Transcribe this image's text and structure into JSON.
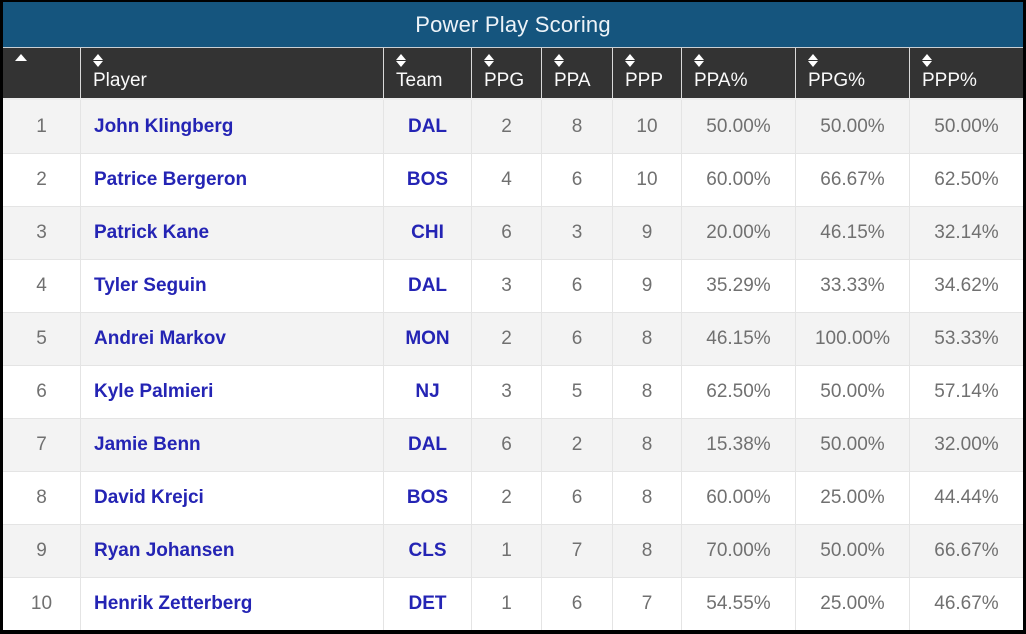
{
  "title": "Power Play Scoring",
  "colors": {
    "title_bar_bg": "#15557E",
    "header_bg": "#333333",
    "link_blue": "#2424B4",
    "muted_text": "#707070",
    "row_stripe": "#F3F3F3",
    "outer_border": "#000000"
  },
  "table": {
    "columns": [
      {
        "key": "rank",
        "label": "",
        "sort": "asc"
      },
      {
        "key": "player",
        "label": "Player",
        "sort": "none"
      },
      {
        "key": "team",
        "label": "Team",
        "sort": "none"
      },
      {
        "key": "ppg",
        "label": "PPG",
        "sort": "none"
      },
      {
        "key": "ppa",
        "label": "PPA",
        "sort": "none"
      },
      {
        "key": "ppp",
        "label": "PPP",
        "sort": "none"
      },
      {
        "key": "ppa_pct",
        "label": "PPA%",
        "sort": "none"
      },
      {
        "key": "ppg_pct",
        "label": "PPG%",
        "sort": "none"
      },
      {
        "key": "ppp_pct",
        "label": "PPP%",
        "sort": "none"
      }
    ],
    "rows": [
      {
        "rank": "1",
        "player": "John Klingberg",
        "team": "DAL",
        "ppg": "2",
        "ppa": "8",
        "ppp": "10",
        "ppa_pct": "50.00%",
        "ppg_pct": "50.00%",
        "ppp_pct": "50.00%"
      },
      {
        "rank": "2",
        "player": "Patrice Bergeron",
        "team": "BOS",
        "ppg": "4",
        "ppa": "6",
        "ppp": "10",
        "ppa_pct": "60.00%",
        "ppg_pct": "66.67%",
        "ppp_pct": "62.50%"
      },
      {
        "rank": "3",
        "player": "Patrick Kane",
        "team": "CHI",
        "ppg": "6",
        "ppa": "3",
        "ppp": "9",
        "ppa_pct": "20.00%",
        "ppg_pct": "46.15%",
        "ppp_pct": "32.14%"
      },
      {
        "rank": "4",
        "player": "Tyler Seguin",
        "team": "DAL",
        "ppg": "3",
        "ppa": "6",
        "ppp": "9",
        "ppa_pct": "35.29%",
        "ppg_pct": "33.33%",
        "ppp_pct": "34.62%"
      },
      {
        "rank": "5",
        "player": "Andrei Markov",
        "team": "MON",
        "ppg": "2",
        "ppa": "6",
        "ppp": "8",
        "ppa_pct": "46.15%",
        "ppg_pct": "100.00%",
        "ppp_pct": "53.33%"
      },
      {
        "rank": "6",
        "player": "Kyle Palmieri",
        "team": "NJ",
        "ppg": "3",
        "ppa": "5",
        "ppp": "8",
        "ppa_pct": "62.50%",
        "ppg_pct": "50.00%",
        "ppp_pct": "57.14%"
      },
      {
        "rank": "7",
        "player": "Jamie Benn",
        "team": "DAL",
        "ppg": "6",
        "ppa": "2",
        "ppp": "8",
        "ppa_pct": "15.38%",
        "ppg_pct": "50.00%",
        "ppp_pct": "32.00%"
      },
      {
        "rank": "8",
        "player": "David Krejci",
        "team": "BOS",
        "ppg": "2",
        "ppa": "6",
        "ppp": "8",
        "ppa_pct": "60.00%",
        "ppg_pct": "25.00%",
        "ppp_pct": "44.44%"
      },
      {
        "rank": "9",
        "player": "Ryan Johansen",
        "team": "CLS",
        "ppg": "1",
        "ppa": "7",
        "ppp": "8",
        "ppa_pct": "70.00%",
        "ppg_pct": "50.00%",
        "ppp_pct": "66.67%"
      },
      {
        "rank": "10",
        "player": "Henrik Zetterberg",
        "team": "DET",
        "ppg": "1",
        "ppa": "6",
        "ppp": "7",
        "ppa_pct": "54.55%",
        "ppg_pct": "25.00%",
        "ppp_pct": "46.67%"
      }
    ]
  }
}
